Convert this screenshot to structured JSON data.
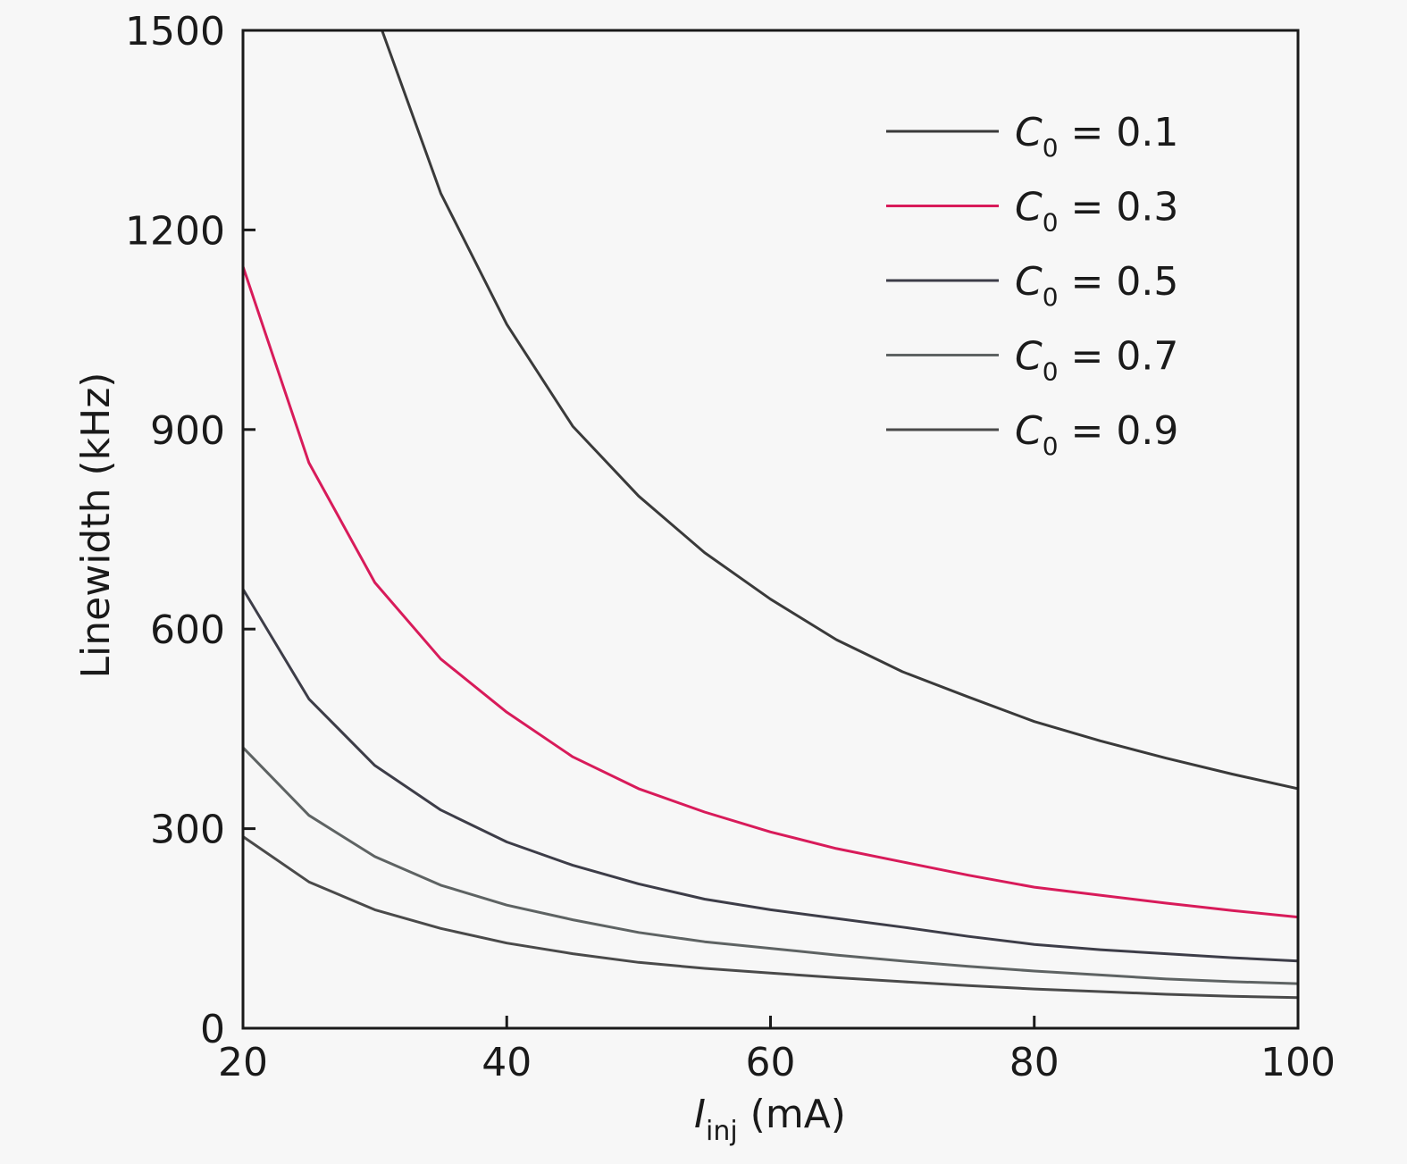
{
  "chart_data": {
    "type": "line",
    "title": "",
    "xlabel": "I_inj (mA)",
    "xlabel_main": "I",
    "xlabel_sub": "inj",
    "xlabel_unit": " (mA)",
    "ylabel": "Linewidth (kHz)",
    "xlim": [
      20,
      100
    ],
    "ylim": [
      0,
      1500
    ],
    "xticks": [
      20,
      40,
      60,
      80,
      100
    ],
    "yticks": [
      0,
      300,
      600,
      900,
      1200,
      1500
    ],
    "grid": false,
    "legend_position": "upper right",
    "x": [
      20,
      25,
      30,
      35,
      40,
      45,
      50,
      55,
      60,
      65,
      70,
      75,
      80,
      85,
      90,
      95,
      100
    ],
    "series": [
      {
        "name": "C0 = 0.1",
        "label_var": "C",
        "label_sub": "0",
        "label_value": " = 0.1",
        "color": "#3a3a3a",
        "values": [
          null,
          null,
          1530,
          1255,
          1058,
          905,
          800,
          715,
          645,
          584,
          536,
          498,
          461,
          432,
          406,
          382,
          360
        ]
      },
      {
        "name": "C0 = 0.3",
        "label_var": "C",
        "label_sub": "0",
        "label_value": " = 0.3",
        "color": "#d81b5a",
        "values": [
          1145,
          850,
          670,
          555,
          475,
          408,
          360,
          325,
          295,
          270,
          250,
          230,
          212,
          200,
          188,
          177,
          167
        ]
      },
      {
        "name": "C0 = 0.5",
        "label_var": "C",
        "label_sub": "0",
        "label_value": " = 0.5",
        "color": "#3d3d48",
        "values": [
          660,
          495,
          395,
          328,
          280,
          245,
          217,
          194,
          178,
          165,
          152,
          138,
          126,
          118,
          112,
          106,
          101
        ]
      },
      {
        "name": "C0 = 0.7",
        "label_var": "C",
        "label_sub": "0",
        "label_value": " = 0.7",
        "color": "#5e6363",
        "values": [
          422,
          320,
          258,
          215,
          185,
          163,
          144,
          130,
          120,
          110,
          101,
          93,
          86,
          80,
          74,
          70,
          67
        ]
      },
      {
        "name": "C0 = 0.9",
        "label_var": "C",
        "label_sub": "0",
        "label_value": " = 0.9",
        "color": "#4a4a4a",
        "values": [
          288,
          220,
          178,
          150,
          128,
          112,
          99,
          90,
          83,
          76,
          70,
          64,
          59,
          55,
          51,
          48,
          46
        ]
      }
    ]
  }
}
